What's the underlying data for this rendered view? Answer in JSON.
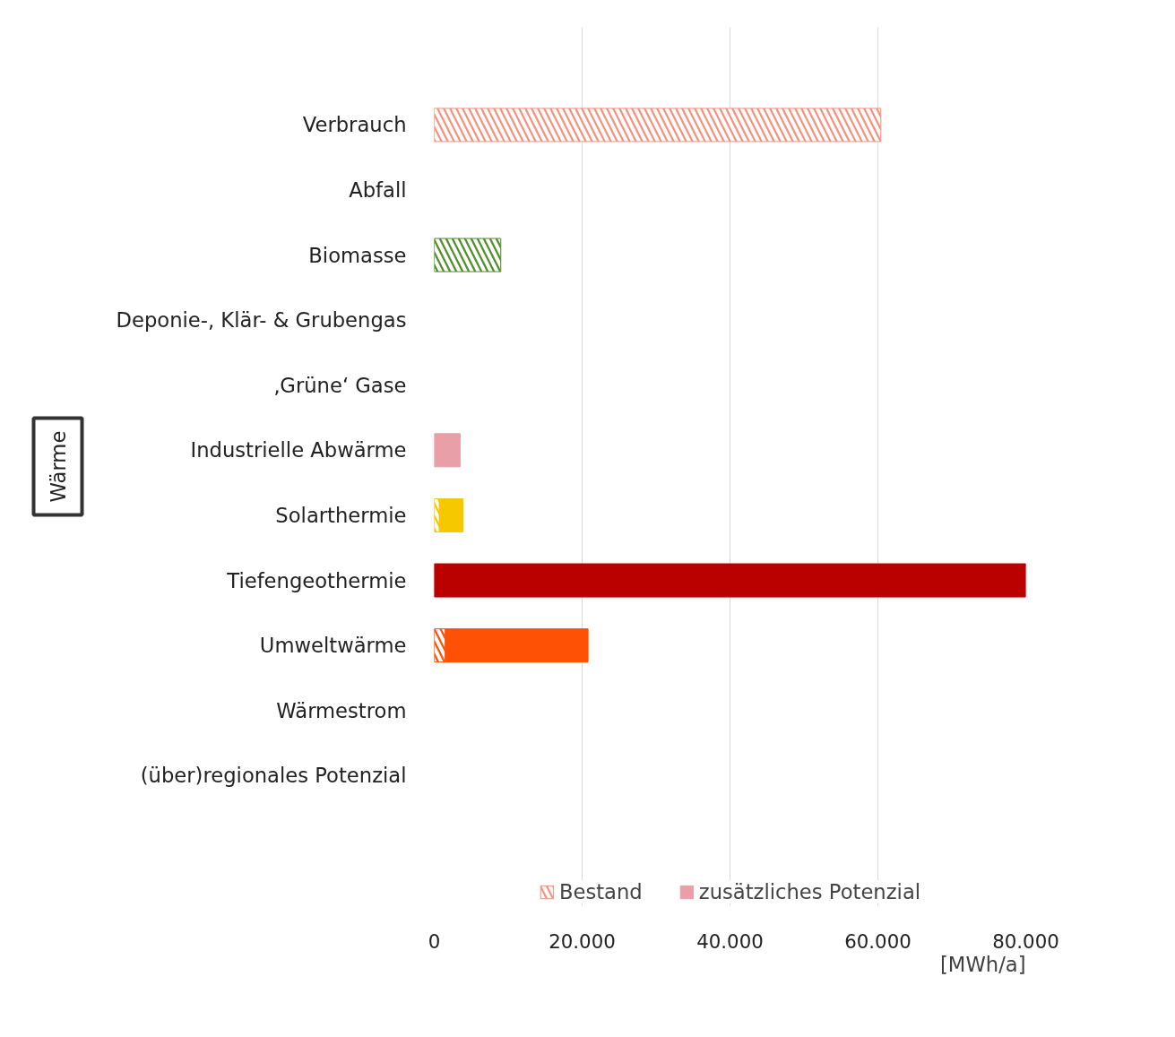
{
  "chart_data": {
    "type": "bar",
    "orientation": "horizontal",
    "stacked": true,
    "categories": [
      "Verbrauch",
      "Abfall",
      "Biomasse",
      "Deponie-, Klär- & Grubengas",
      "‚Grüne‘ Gase",
      "Industrielle Abwärme",
      "Solarthermie",
      "Tiefengeothermie",
      "Umweltwärme",
      "Wärmestrom",
      "(über)regionales Potenzial"
    ],
    "series": [
      {
        "name": "Bestand",
        "values": [
          60400,
          null,
          9000,
          null,
          null,
          null,
          700,
          null,
          1500,
          null,
          null
        ],
        "colors": [
          "#f4937d",
          null,
          "#4e8f2a",
          null,
          null,
          null,
          "#f5c800",
          null,
          "#ff5106",
          null,
          null
        ]
      },
      {
        "name": "zusätzliches Potenzial",
        "values": [
          null,
          null,
          null,
          null,
          null,
          3500,
          3200,
          80000,
          19300,
          null,
          null
        ],
        "colors": [
          null,
          null,
          null,
          null,
          null,
          "#e89fa8",
          "#f5c800",
          "#bb0000",
          "#ff5106",
          null,
          null
        ]
      }
    ],
    "xlim": [
      0,
      80000
    ],
    "xticks": [
      0,
      {
        "value": 20000,
        "label": "20.000"
      },
      {
        "value": 40000,
        "label": "40.000"
      },
      {
        "value": 60000,
        "label": "60.000"
      },
      {
        "value": 80000,
        "label": "80.000"
      }
    ],
    "xlabel": "[MWh/a]",
    "annotations": [
      "Wärme"
    ],
    "grid": "x",
    "legend": "bottom"
  }
}
